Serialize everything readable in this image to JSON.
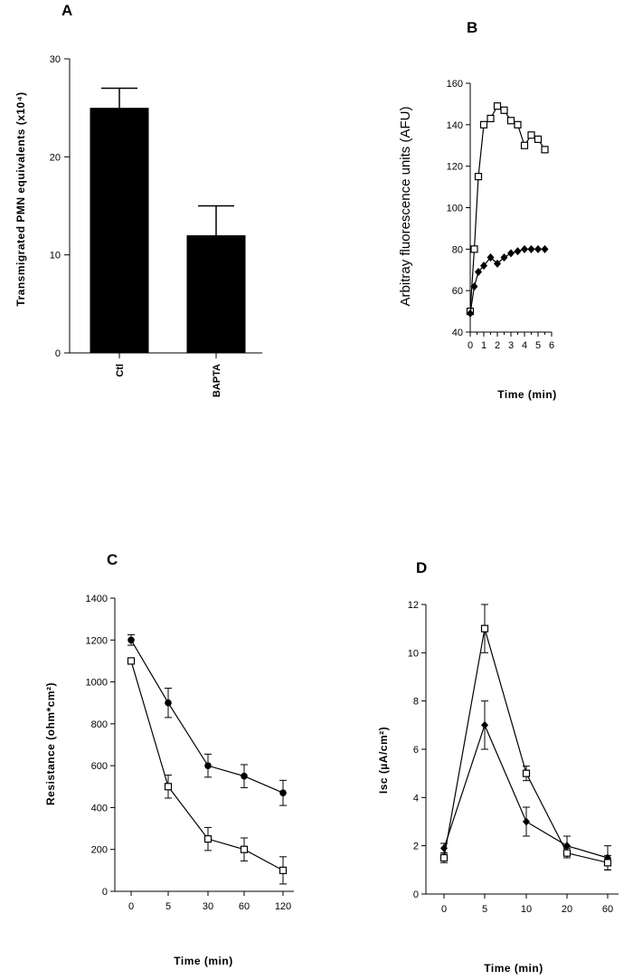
{
  "chart_data": [
    {
      "panel": "A",
      "type": "bar",
      "categories": [
        "Ctl",
        "BAPTA"
      ],
      "values": [
        25,
        12
      ],
      "errors": [
        2,
        3
      ],
      "ylabel": "Transmigrated PMN equivalents (x10⁴)",
      "ylim": [
        0,
        30
      ],
      "yticks": [
        0,
        10,
        20,
        30
      ],
      "bar_color": "#000000"
    },
    {
      "panel": "B",
      "type": "line",
      "xlabel": "Time (min)",
      "ylabel": "Arbitray fluorescence units (AFU)",
      "xlim": [
        0,
        6
      ],
      "ylim": [
        40,
        160
      ],
      "xticks": [
        0,
        1,
        2,
        3,
        4,
        5,
        6
      ],
      "xticks_minor": [
        0.5,
        1.5,
        2.5,
        3.5,
        4.5,
        5.5
      ],
      "yticks": [
        40,
        60,
        80,
        100,
        120,
        140,
        160
      ],
      "series": [
        {
          "marker": "open-square",
          "x": [
            0,
            0.3,
            0.6,
            1.0,
            1.5,
            2.0,
            2.5,
            3.0,
            3.5,
            4.0,
            4.5,
            5.0,
            5.5
          ],
          "y": [
            50,
            80,
            115,
            140,
            143,
            149,
            147,
            142,
            140,
            130,
            135,
            133,
            128
          ]
        },
        {
          "marker": "filled-diamond",
          "x": [
            0,
            0.3,
            0.6,
            1.0,
            1.5,
            2.0,
            2.5,
            3.0,
            3.5,
            4.0,
            4.5,
            5.0,
            5.5
          ],
          "y": [
            49,
            62,
            69,
            72,
            76,
            73,
            76,
            78,
            79,
            80,
            80,
            80,
            80
          ]
        }
      ]
    },
    {
      "panel": "C",
      "type": "line",
      "xlabel": "Time (min)",
      "ylabel": "Resistance (ohm*cm²)",
      "categories": [
        "0",
        "5",
        "30",
        "60",
        "120"
      ],
      "ylim": [
        0,
        1400
      ],
      "yticks": [
        0,
        200,
        400,
        600,
        800,
        1000,
        1200,
        1400
      ],
      "series": [
        {
          "marker": "filled-circle",
          "values": [
            1200,
            900,
            600,
            550,
            470
          ],
          "errors": [
            25,
            70,
            55,
            55,
            60
          ]
        },
        {
          "marker": "open-square",
          "values": [
            1100,
            500,
            250,
            200,
            100
          ],
          "errors": [
            0,
            55,
            55,
            55,
            65
          ]
        }
      ]
    },
    {
      "panel": "D",
      "type": "line",
      "xlabel": "Time (min)",
      "ylabel": "Isc (µA/cm²)",
      "categories": [
        "0",
        "5",
        "10",
        "20",
        "60"
      ],
      "ylim": [
        0,
        12
      ],
      "yticks": [
        0,
        2,
        4,
        6,
        8,
        10,
        12
      ],
      "series": [
        {
          "marker": "filled-diamond",
          "values": [
            1.9,
            7.0,
            3.0,
            2.0,
            1.5
          ],
          "errors": [
            0.2,
            1.0,
            0.6,
            0.4,
            0.5
          ]
        },
        {
          "marker": "open-square",
          "values": [
            1.5,
            11.0,
            5.0,
            1.7,
            1.3
          ],
          "errors": [
            0.2,
            1.0,
            0.3,
            0.2,
            0.3
          ]
        }
      ]
    }
  ]
}
